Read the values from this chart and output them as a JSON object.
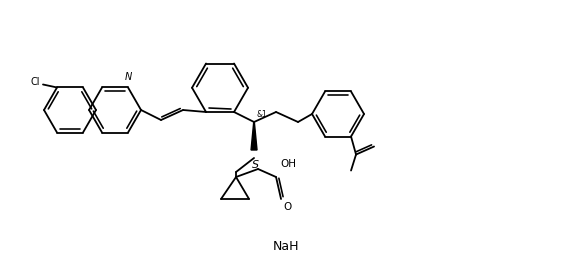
{
  "bg": "#ffffff",
  "lc": "#000000",
  "lw": 1.3,
  "figsize": [
    5.72,
    2.68
  ],
  "dpi": 100,
  "nah_text": "NaH",
  "cl_text": "Cl",
  "n_text": "N",
  "s_text": "S",
  "oh_text": "OH",
  "o_text": "O",
  "stereo_text": "&1"
}
